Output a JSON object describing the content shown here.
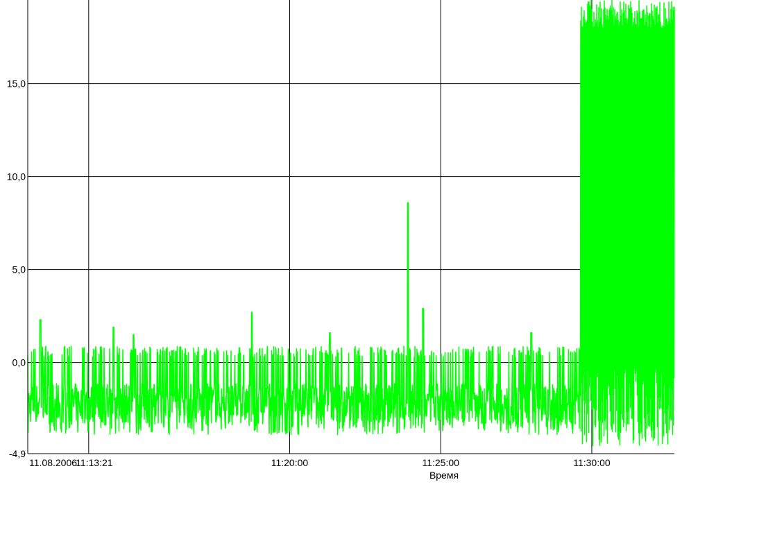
{
  "chart_data": {
    "type": "line",
    "title": "",
    "xlabel": "Время",
    "ylabel": "",
    "x_start_label": "11.08.2006",
    "x_range": [
      "11:11:20",
      "11:32:44"
    ],
    "ylim": [
      -4.9,
      19.5
    ],
    "grid": true,
    "legend": "none",
    "y_ticks": [
      {
        "value": -4.9,
        "label": "-4,9"
      },
      {
        "value": 0.0,
        "label": "0,0"
      },
      {
        "value": 5.0,
        "label": "5,0"
      },
      {
        "value": 10.0,
        "label": "10,0"
      },
      {
        "value": 15.0,
        "label": "15,0"
      }
    ],
    "x_ticks": [
      {
        "value": "11:13:21",
        "label": "11:13:21"
      },
      {
        "value": "11:20:00",
        "label": "11:20:00"
      },
      {
        "value": "11:25:00",
        "label": "11:25:00"
      },
      {
        "value": "11:30:00",
        "label": "11:30:00"
      }
    ],
    "series": [
      {
        "color": "#00ff00",
        "baseline_range": [
          -3.9,
          0.9
        ],
        "oscillation_start": "11:29:37",
        "oscillation_range": [
          -4.5,
          19.5
        ],
        "spikes": [
          {
            "x": "11:11:45",
            "y": 2.3
          },
          {
            "x": "11:14:10",
            "y": 1.9
          },
          {
            "x": "11:14:50",
            "y": 1.5
          },
          {
            "x": "11:18:45",
            "y": 2.7
          },
          {
            "x": "11:21:20",
            "y": 1.6
          },
          {
            "x": "11:23:55",
            "y": 8.6
          },
          {
            "x": "11:24:25",
            "y": 2.9
          },
          {
            "x": "11:28:00",
            "y": 1.6
          }
        ]
      }
    ]
  }
}
